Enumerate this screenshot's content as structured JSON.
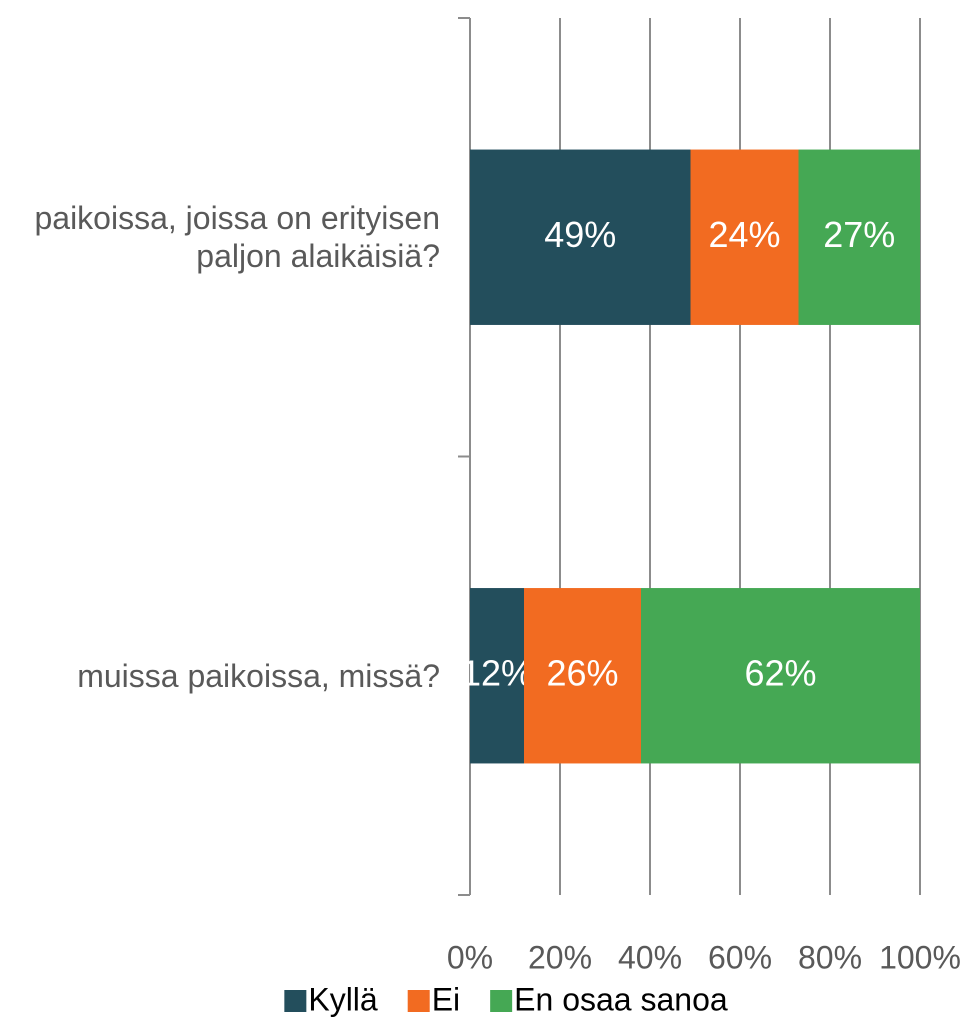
{
  "chart_data": {
    "type": "stacked-bar-horizontal",
    "categories": [
      "paikoissa, joissa on erityisen paljon alaikäisiä?",
      "muissa paikoissa, missä?"
    ],
    "series": [
      {
        "name": "Kyllä",
        "color": "#234e5c",
        "values": [
          49,
          12
        ],
        "value_labels": [
          "49%",
          "12%"
        ]
      },
      {
        "name": "Ei",
        "color": "#f26b21",
        "values": [
          24,
          26
        ],
        "value_labels": [
          "24%",
          "26%"
        ]
      },
      {
        "name": "En osaa sanoa",
        "color": "#45a854",
        "values": [
          27,
          62
        ],
        "value_labels": [
          "27%",
          "62%"
        ]
      }
    ],
    "xlim": [
      0,
      100
    ],
    "xticks": [
      {
        "value": 0,
        "label": "0%"
      },
      {
        "value": 20,
        "label": "20%"
      },
      {
        "value": 40,
        "label": "40%"
      },
      {
        "value": 60,
        "label": "60%"
      },
      {
        "value": 80,
        "label": "80%"
      },
      {
        "value": 100,
        "label": "100%"
      }
    ],
    "grid": true,
    "legend": "bottom"
  }
}
